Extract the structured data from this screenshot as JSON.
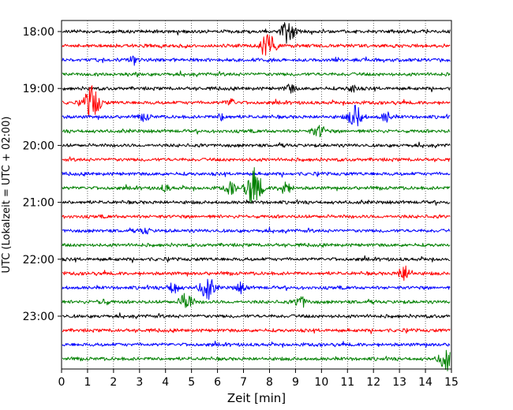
{
  "chart_data": {
    "type": "line",
    "title": "",
    "xlabel": "Zeit  [min]",
    "ylabel": "UTC (Lokalzeit = UTC + 02:00)",
    "xlim": [
      0,
      15
    ],
    "x_ticks": [
      "0",
      "1",
      "2",
      "3",
      "4",
      "5",
      "6",
      "7",
      "8",
      "9",
      "10",
      "11",
      "12",
      "13",
      "14",
      "15"
    ],
    "y_ticks": [
      "18:00",
      "19:00",
      "20:00",
      "21:00",
      "22:00",
      "23:00"
    ],
    "grid": "vertical dotted lines at each minute",
    "trace_interval_minutes": 15,
    "trace_colors": [
      "#000000",
      "#ff0000",
      "#0000ff",
      "#008000"
    ],
    "traces": [
      {
        "start": "18:00",
        "color": "#000000",
        "events": [
          {
            "t": 8.7,
            "amp": 1.0
          }
        ]
      },
      {
        "start": "18:15",
        "color": "#ff0000",
        "events": [
          {
            "t": 8.0,
            "amp": 0.9
          },
          {
            "t": 7.7,
            "amp": 0.4
          }
        ]
      },
      {
        "start": "18:30",
        "color": "#0000ff",
        "events": [
          {
            "t": 2.8,
            "amp": 0.3
          }
        ]
      },
      {
        "start": "18:45",
        "color": "#008000",
        "events": []
      },
      {
        "start": "19:00",
        "color": "#000000",
        "events": [
          {
            "t": 8.8,
            "amp": 0.35
          },
          {
            "t": 11.2,
            "amp": 0.3
          }
        ]
      },
      {
        "start": "19:15",
        "color": "#ff0000",
        "events": [
          {
            "t": 1.1,
            "amp": 1.0
          },
          {
            "t": 1.3,
            "amp": 0.7
          },
          {
            "t": 6.5,
            "amp": 0.3
          }
        ]
      },
      {
        "start": "19:30",
        "color": "#0000ff",
        "events": [
          {
            "t": 11.3,
            "amp": 1.0
          },
          {
            "t": 12.5,
            "amp": 0.4
          },
          {
            "t": 6.2,
            "amp": 0.3
          },
          {
            "t": 3.2,
            "amp": 0.3
          }
        ]
      },
      {
        "start": "19:45",
        "color": "#008000",
        "events": [
          {
            "t": 10.0,
            "amp": 0.3
          },
          {
            "t": 9.8,
            "amp": 0.3
          }
        ]
      },
      {
        "start": "20:00",
        "color": "#000000",
        "events": []
      },
      {
        "start": "20:15",
        "color": "#ff0000",
        "events": []
      },
      {
        "start": "20:30",
        "color": "#0000ff",
        "events": []
      },
      {
        "start": "20:45",
        "color": "#008000",
        "events": [
          {
            "t": 7.3,
            "amp": 1.0
          },
          {
            "t": 7.5,
            "amp": 0.9
          },
          {
            "t": 8.6,
            "amp": 0.6
          },
          {
            "t": 6.5,
            "amp": 0.5
          },
          {
            "t": 4.0,
            "amp": 0.25
          }
        ]
      },
      {
        "start": "21:00",
        "color": "#000000",
        "events": []
      },
      {
        "start": "21:15",
        "color": "#ff0000",
        "events": []
      },
      {
        "start": "21:30",
        "color": "#0000ff",
        "events": [
          {
            "t": 3.2,
            "amp": 0.25
          }
        ]
      },
      {
        "start": "21:45",
        "color": "#008000",
        "events": []
      },
      {
        "start": "22:00",
        "color": "#000000",
        "events": []
      },
      {
        "start": "22:15",
        "color": "#ff0000",
        "events": [
          {
            "t": 13.2,
            "amp": 0.7
          }
        ]
      },
      {
        "start": "22:30",
        "color": "#0000ff",
        "events": [
          {
            "t": 5.6,
            "amp": 1.0
          },
          {
            "t": 4.3,
            "amp": 0.5
          },
          {
            "t": 6.9,
            "amp": 0.4
          }
        ]
      },
      {
        "start": "22:45",
        "color": "#008000",
        "events": [
          {
            "t": 4.8,
            "amp": 0.8
          },
          {
            "t": 9.2,
            "amp": 0.5
          },
          {
            "t": 1.6,
            "amp": 0.25
          }
        ]
      },
      {
        "start": "23:00",
        "color": "#000000",
        "events": []
      },
      {
        "start": "23:15",
        "color": "#ff0000",
        "events": []
      },
      {
        "start": "23:30",
        "color": "#0000ff",
        "events": []
      },
      {
        "start": "23:45",
        "color": "#008000",
        "events": [
          {
            "t": 14.8,
            "amp": 1.0
          }
        ]
      }
    ]
  }
}
